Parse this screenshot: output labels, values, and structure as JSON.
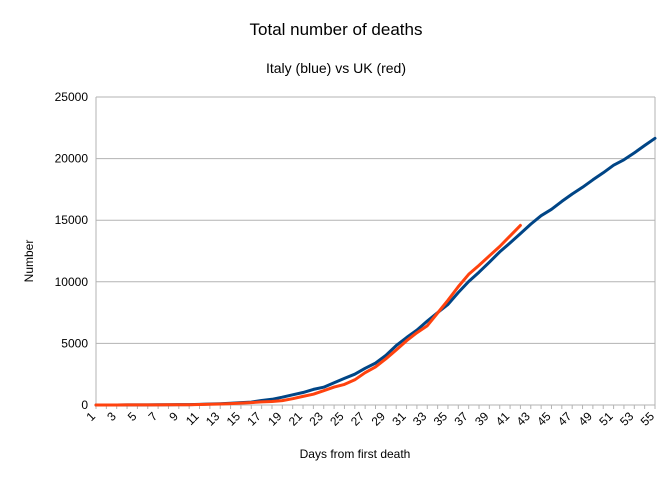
{
  "chart_data": {
    "type": "line",
    "title": "Total number of deaths",
    "subtitle": "Italy (blue) vs UK (red)",
    "xlabel": "Days from first death",
    "ylabel": "Number",
    "ylim": [
      0,
      25000
    ],
    "yticks": [
      0,
      5000,
      10000,
      15000,
      20000,
      25000
    ],
    "xlim": [
      1,
      55
    ],
    "xtick_labels": [
      "1",
      "3",
      "5",
      "7",
      "9",
      "11",
      "13",
      "15",
      "17",
      "19",
      "21",
      "23",
      "25",
      "27",
      "29",
      "31",
      "33",
      "35",
      "37",
      "39",
      "41",
      "43",
      "45",
      "47",
      "49",
      "51",
      "53",
      "55"
    ],
    "grid": "horizontal",
    "series": [
      {
        "color": "#004586",
        "x": [
          1,
          2,
          3,
          4,
          5,
          6,
          7,
          8,
          9,
          10,
          11,
          12,
          13,
          14,
          15,
          16,
          17,
          18,
          19,
          20,
          21,
          22,
          23,
          24,
          25,
          26,
          27,
          28,
          29,
          30,
          31,
          32,
          33,
          34,
          35,
          36,
          37,
          38,
          39,
          40,
          41,
          42,
          43,
          44,
          45,
          46,
          47,
          48,
          49,
          50,
          51,
          52,
          53,
          54,
          55
        ],
        "values": [
          1,
          2,
          3,
          7,
          10,
          12,
          17,
          21,
          29,
          34,
          52,
          79,
          107,
          148,
          197,
          233,
          366,
          463,
          631,
          827,
          1016,
          1266,
          1441,
          1809,
          2158,
          2503,
          2978,
          3405,
          4032,
          4825,
          5476,
          6077,
          6820,
          7503,
          8165,
          9134,
          10023,
          10779,
          11591,
          12428,
          13155,
          13915,
          14681,
          15362,
          15887,
          16523,
          17127,
          17669,
          18279,
          18849,
          19468,
          19899,
          20465,
          21067,
          21645
        ]
      },
      {
        "color": "#ff420e",
        "x": [
          1,
          2,
          3,
          4,
          5,
          6,
          7,
          8,
          9,
          10,
          11,
          12,
          13,
          14,
          15,
          16,
          17,
          18,
          19,
          20,
          21,
          22,
          23,
          24,
          25,
          26,
          27,
          28,
          29,
          30,
          31,
          32,
          33,
          34,
          35,
          36,
          37,
          38,
          39,
          40,
          41,
          42
        ],
        "values": [
          1,
          2,
          3,
          5,
          7,
          9,
          11,
          17,
          21,
          28,
          43,
          65,
          81,
          115,
          158,
          194,
          250,
          285,
          359,
          508,
          694,
          877,
          1161,
          1455,
          1669,
          2043,
          2625,
          3095,
          3747,
          4461,
          5221,
          5865,
          6433,
          7471,
          8505,
          9608,
          10612,
          11329,
          12107,
          12868,
          13729,
          14576
        ]
      }
    ]
  }
}
